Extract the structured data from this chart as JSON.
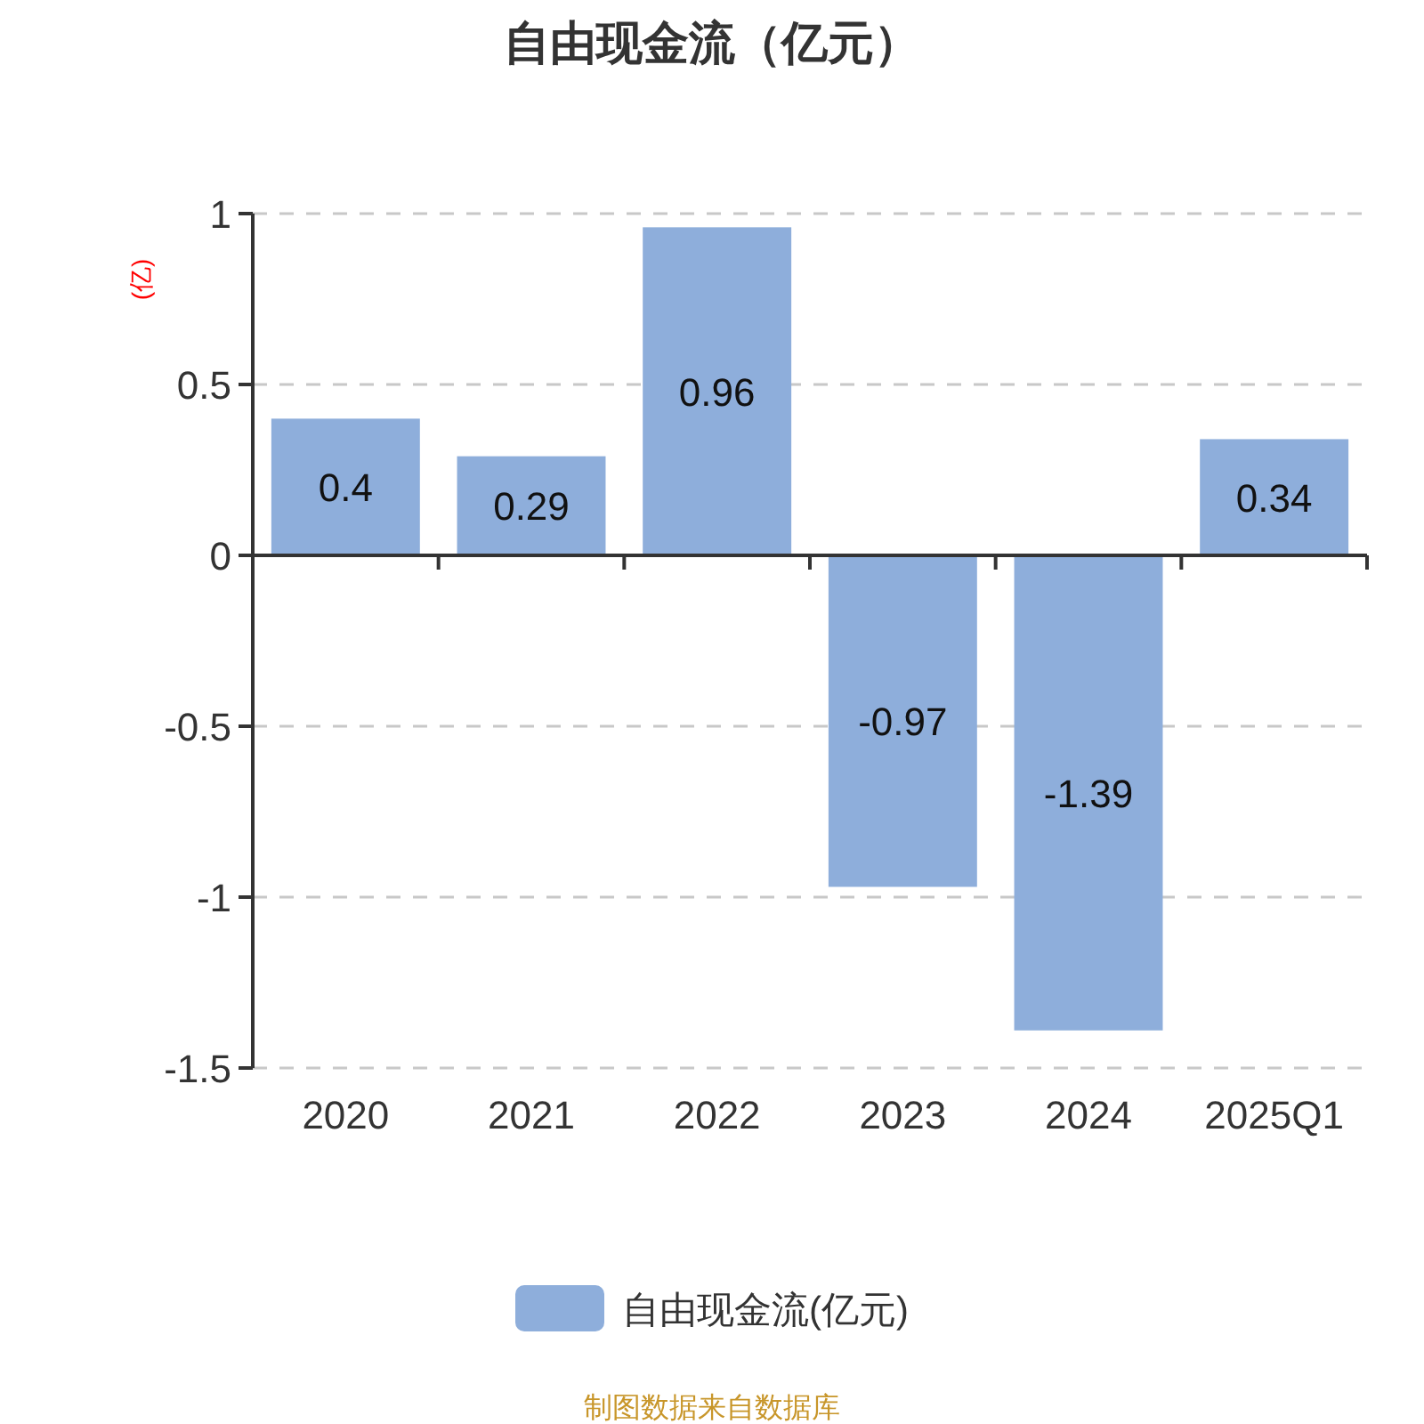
{
  "chart_data": {
    "type": "bar",
    "title": "自由现金流（亿元）",
    "ylabel": "(亿)",
    "categories": [
      "2020",
      "2021",
      "2022",
      "2023",
      "2024",
      "2025Q1"
    ],
    "series": [
      {
        "name": "自由现金流(亿元)",
        "color": "#8eaedb",
        "values": [
          0.4,
          0.29,
          0.96,
          -0.97,
          -1.39,
          0.34
        ]
      }
    ],
    "ylim": [
      -1.5,
      1
    ],
    "yticks": [
      -1.5,
      -1,
      -0.5,
      0,
      0.5,
      1
    ],
    "grid": "y",
    "legend": "bottom",
    "data_labels": true,
    "annotations": [
      "制图数据来自数据库"
    ]
  }
}
